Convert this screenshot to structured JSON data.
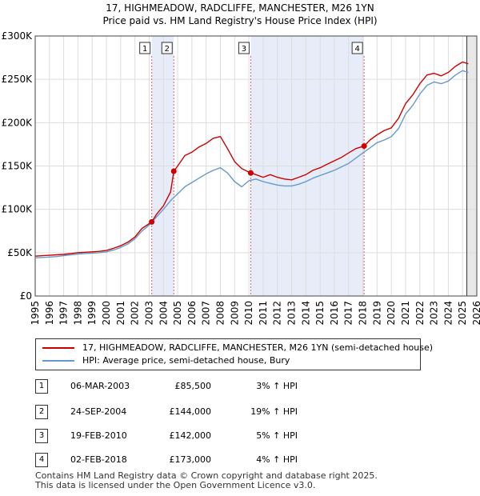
{
  "title_line1": "17, HIGHMEADOW, RADCLIFFE, MANCHESTER, M26 1YN",
  "title_line2": "Price paid vs. HM Land Registry's House Price Index (HPI)",
  "chart_data": {
    "type": "line",
    "xlim": [
      1995,
      2026
    ],
    "ylim": [
      0,
      300000
    ],
    "y_ticks": [
      0,
      50000,
      100000,
      150000,
      200000,
      250000,
      300000
    ],
    "y_tick_labels": [
      "£0",
      "£50K",
      "£100K",
      "£150K",
      "£200K",
      "£250K",
      "£300K"
    ],
    "x_ticks": [
      1995,
      1996,
      1997,
      1998,
      1999,
      2000,
      2001,
      2002,
      2003,
      2004,
      2005,
      2006,
      2007,
      2008,
      2009,
      2010,
      2011,
      2012,
      2013,
      2014,
      2015,
      2016,
      2017,
      2018,
      2019,
      2020,
      2021,
      2022,
      2023,
      2024,
      2025,
      2026
    ],
    "grid": true,
    "forecast_start": 2025.3,
    "shaded_periods": [
      [
        2003.18,
        2004.73
      ],
      [
        2010.13,
        2018.09
      ]
    ],
    "series": [
      {
        "name": "17, HIGHMEADOW, RADCLIFFE, MANCHESTER, M26 1YN (semi-detached house)",
        "color": "#cc0000",
        "points": [
          [
            1995,
            46000
          ],
          [
            1995.5,
            46500
          ],
          [
            1996,
            47000
          ],
          [
            1996.5,
            47500
          ],
          [
            1997,
            48000
          ],
          [
            1997.5,
            49000
          ],
          [
            1998,
            50000
          ],
          [
            1998.5,
            50500
          ],
          [
            1999,
            51000
          ],
          [
            1999.5,
            51500
          ],
          [
            2000,
            52500
          ],
          [
            2000.5,
            55000
          ],
          [
            2001,
            58000
          ],
          [
            2001.5,
            62000
          ],
          [
            2002,
            68000
          ],
          [
            2002.5,
            78000
          ],
          [
            2003.18,
            85500
          ],
          [
            2003.5,
            94000
          ],
          [
            2004,
            104000
          ],
          [
            2004.5,
            120000
          ],
          [
            2004.73,
            144000
          ],
          [
            2005,
            150000
          ],
          [
            2005.5,
            162000
          ],
          [
            2006,
            166000
          ],
          [
            2006.5,
            172000
          ],
          [
            2007,
            176000
          ],
          [
            2007.5,
            182000
          ],
          [
            2008,
            184000
          ],
          [
            2008.5,
            170000
          ],
          [
            2009,
            155000
          ],
          [
            2009.5,
            147000
          ],
          [
            2010.13,
            142000
          ],
          [
            2010.5,
            140000
          ],
          [
            2011,
            137000
          ],
          [
            2011.5,
            140000
          ],
          [
            2012,
            137000
          ],
          [
            2012.5,
            135000
          ],
          [
            2013,
            134000
          ],
          [
            2013.5,
            137000
          ],
          [
            2014,
            140000
          ],
          [
            2014.5,
            145000
          ],
          [
            2015,
            148000
          ],
          [
            2015.5,
            152000
          ],
          [
            2016,
            156000
          ],
          [
            2016.5,
            160000
          ],
          [
            2017,
            165000
          ],
          [
            2017.5,
            170000
          ],
          [
            2018.09,
            173000
          ],
          [
            2018.5,
            180000
          ],
          [
            2019,
            186000
          ],
          [
            2019.5,
            191000
          ],
          [
            2020,
            194000
          ],
          [
            2020.5,
            205000
          ],
          [
            2021,
            222000
          ],
          [
            2021.5,
            232000
          ],
          [
            2022,
            245000
          ],
          [
            2022.5,
            255000
          ],
          [
            2023,
            257000
          ],
          [
            2023.5,
            254000
          ],
          [
            2024,
            258000
          ],
          [
            2024.5,
            265000
          ],
          [
            2025,
            270000
          ],
          [
            2025.4,
            268000
          ]
        ]
      },
      {
        "name": "HPI: Average price, semi-detached house, Bury",
        "color": "#6699cc",
        "points": [
          [
            1995,
            44000
          ],
          [
            1995.5,
            44500
          ],
          [
            1996,
            45000
          ],
          [
            1996.5,
            45500
          ],
          [
            1997,
            46500
          ],
          [
            1997.5,
            47500
          ],
          [
            1998,
            48500
          ],
          [
            1998.5,
            49000
          ],
          [
            1999,
            49500
          ],
          [
            1999.5,
            50000
          ],
          [
            2000,
            51000
          ],
          [
            2000.5,
            53000
          ],
          [
            2001,
            56000
          ],
          [
            2001.5,
            60000
          ],
          [
            2002,
            66000
          ],
          [
            2002.5,
            75000
          ],
          [
            2003,
            82000
          ],
          [
            2003.5,
            91000
          ],
          [
            2004,
            100000
          ],
          [
            2004.5,
            110000
          ],
          [
            2005,
            118000
          ],
          [
            2005.5,
            126000
          ],
          [
            2006,
            131000
          ],
          [
            2006.5,
            136000
          ],
          [
            2007,
            141000
          ],
          [
            2007.5,
            145000
          ],
          [
            2008,
            148000
          ],
          [
            2008.5,
            142000
          ],
          [
            2009,
            132000
          ],
          [
            2009.5,
            126000
          ],
          [
            2010,
            133000
          ],
          [
            2010.5,
            135000
          ],
          [
            2011,
            132000
          ],
          [
            2011.5,
            130000
          ],
          [
            2012,
            128000
          ],
          [
            2012.5,
            127000
          ],
          [
            2013,
            127000
          ],
          [
            2013.5,
            129000
          ],
          [
            2014,
            132000
          ],
          [
            2014.5,
            136000
          ],
          [
            2015,
            139000
          ],
          [
            2015.5,
            142000
          ],
          [
            2016,
            145000
          ],
          [
            2016.5,
            149000
          ],
          [
            2017,
            153000
          ],
          [
            2017.5,
            159000
          ],
          [
            2018,
            165000
          ],
          [
            2018.5,
            171000
          ],
          [
            2019,
            177000
          ],
          [
            2019.5,
            180000
          ],
          [
            2020,
            184000
          ],
          [
            2020.5,
            193000
          ],
          [
            2021,
            210000
          ],
          [
            2021.5,
            220000
          ],
          [
            2022,
            233000
          ],
          [
            2022.5,
            243000
          ],
          [
            2023,
            247000
          ],
          [
            2023.5,
            245000
          ],
          [
            2024,
            248000
          ],
          [
            2024.5,
            255000
          ],
          [
            2025,
            260000
          ],
          [
            2025.4,
            258000
          ]
        ]
      }
    ],
    "markers": [
      {
        "label": "1",
        "x": 2003.18,
        "y": 85500
      },
      {
        "label": "2",
        "x": 2004.73,
        "y": 144000
      },
      {
        "label": "3",
        "x": 2010.13,
        "y": 142000
      },
      {
        "label": "4",
        "x": 2018.09,
        "y": 173000
      }
    ]
  },
  "legend": {
    "property_label": "17, HIGHMEADOW, RADCLIFFE, MANCHESTER, M26 1YN (semi-detached house)",
    "hpi_label": "HPI: Average price, semi-detached house, Bury",
    "property_color": "#cc0000",
    "hpi_color": "#6699cc"
  },
  "transactions": [
    {
      "num": "1",
      "date": "06-MAR-2003",
      "price": "£85,500",
      "hpi": "3% ↑ HPI"
    },
    {
      "num": "2",
      "date": "24-SEP-2004",
      "price": "£144,000",
      "hpi": "19% ↑ HPI"
    },
    {
      "num": "3",
      "date": "19-FEB-2010",
      "price": "£142,000",
      "hpi": "5% ↑ HPI"
    },
    {
      "num": "4",
      "date": "02-FEB-2018",
      "price": "£173,000",
      "hpi": "4% ↑ HPI"
    }
  ],
  "footer": {
    "line1": "Contains HM Land Registry data © Crown copyright and database right 2025.",
    "line2": "This data is licensed under the Open Government Licence v3.0."
  }
}
